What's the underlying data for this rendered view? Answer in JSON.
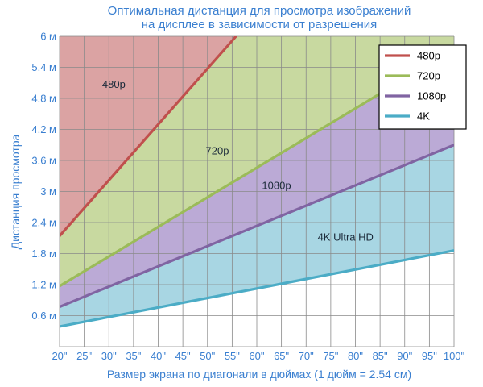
{
  "chart_data": {
    "type": "area",
    "title_lines": [
      "Оптимальная дистанция для просмотра изображений",
      "на дисплее в зависимости от разрешения"
    ],
    "xlabel": "Размер экрана по диагонали в дюймах (1 дюйм = 2.54 см)",
    "ylabel": "Дистанция просмотра",
    "xlim": [
      20,
      100
    ],
    "ylim": [
      0,
      6
    ],
    "x_ticks": [
      20,
      25,
      30,
      35,
      40,
      45,
      50,
      55,
      60,
      65,
      70,
      75,
      80,
      85,
      90,
      95,
      100
    ],
    "x_tick_labels": [
      "20\"",
      "25\"",
      "30\"",
      "35\"",
      "40\"",
      "45\"",
      "50\"",
      "55\"",
      "60\"",
      "65\"",
      "70\"",
      "75\"",
      "80\"",
      "85\"",
      "90\"",
      "95\"",
      "100\""
    ],
    "y_ticks": [
      0.6,
      1.2,
      1.8,
      2.4,
      3,
      3.6,
      4.2,
      4.8,
      5.4,
      6
    ],
    "y_tick_labels": [
      "0.6 м",
      "1.2 м",
      "1.8 м",
      "2.4 м",
      "3 м",
      "3.6 м",
      "4.2 м",
      "4.8 м",
      "5.4 м",
      "6 м"
    ],
    "grid": true,
    "legend_position": "top-right",
    "series": [
      {
        "name": "480p",
        "color": "#c0504d",
        "fill": "#dba3a3",
        "x": [
          20,
          55.8
        ],
        "y": [
          2.14,
          6.0
        ]
      },
      {
        "name": "720p",
        "color": "#9bbb59",
        "fill": "#c8d9a0",
        "x": [
          20,
          100
        ],
        "y": [
          1.17,
          5.75
        ]
      },
      {
        "name": "1080p",
        "color": "#8064a2",
        "fill": "#bbaad6",
        "x": [
          20,
          100
        ],
        "y": [
          0.77,
          3.9
        ]
      },
      {
        "name": "4K",
        "color": "#4bacc6",
        "fill": "#a8d6e3",
        "x": [
          20,
          100
        ],
        "y": [
          0.39,
          1.86
        ]
      }
    ],
    "region_labels": [
      {
        "text": "480p",
        "x": 31,
        "y": 5.0
      },
      {
        "text": "720p",
        "x": 52,
        "y": 3.72
      },
      {
        "text": "1080p",
        "x": 64,
        "y": 3.05
      },
      {
        "text": "4K Ultra HD",
        "x": 78,
        "y": 2.05
      }
    ]
  }
}
